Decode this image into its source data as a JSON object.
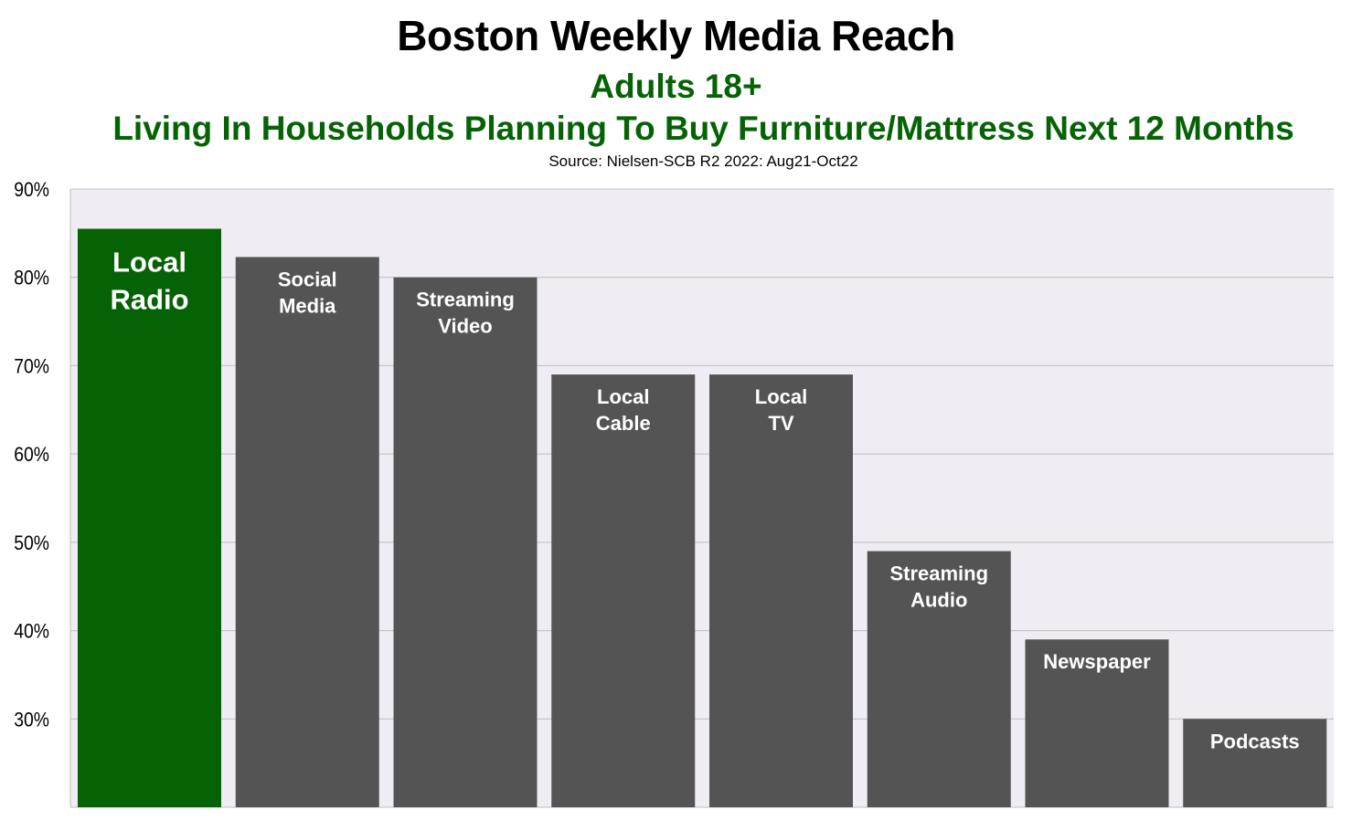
{
  "chart_data": {
    "type": "bar",
    "title": "Boston Weekly Media Reach",
    "subtitle": "Adults 18+",
    "subtitle2": "Living In Households Planning To Buy Furniture/Mattress Next 12 Months",
    "source": "Source: Nielsen-SCB R2 2022:  Aug21-Oct22",
    "categories": [
      "Local Radio",
      "Social Media",
      "Streaming Video",
      "Local Cable",
      "Local TV",
      "Streaming Audio",
      "Newspaper",
      "Podcasts"
    ],
    "values": [
      85.5,
      82.3,
      80,
      69,
      69,
      49,
      39,
      30
    ],
    "unit": "%",
    "ylim": [
      20,
      90
    ],
    "yticks": [
      "30%",
      "40%",
      "50%",
      "60%",
      "70%",
      "80%",
      "90%"
    ],
    "ytick_values": [
      30,
      40,
      50,
      60,
      70,
      80,
      90
    ],
    "grid": true,
    "legend": "none",
    "xlabel": "",
    "ylabel": "",
    "colors": {
      "highlight": "#056305",
      "bar": "#545454",
      "plot_bg": "#efedf3",
      "grid": "#bdbdbd",
      "title": "#000000",
      "subtitle": "#056305"
    }
  }
}
